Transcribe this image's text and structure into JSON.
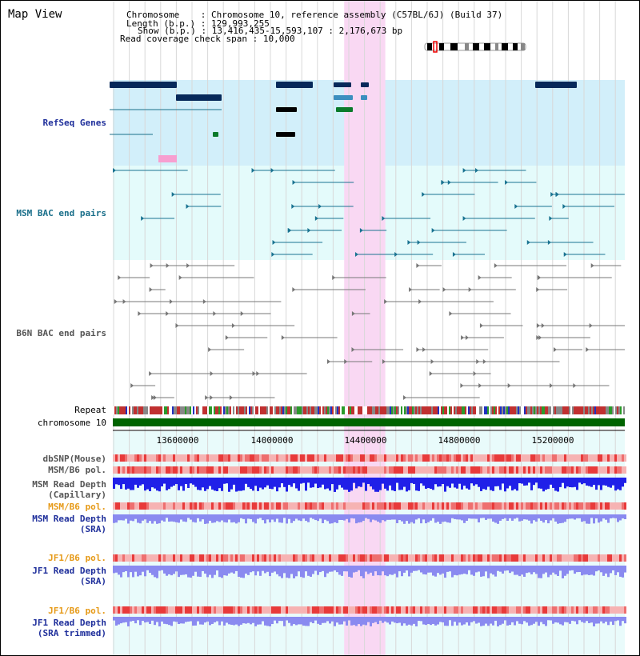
{
  "view_title": "Map View",
  "header": {
    "chromosome_label": "Chromosome",
    "chromosome_value": "Chromosome 10, reference assembly (C57BL/6J) (Build 37)",
    "length_label": "Length (b.p.)",
    "length_value": "129,993,255",
    "show_label": "Show (b.p.)",
    "show_value": "13,416,435-15,593,107 : 2,176,673 bp",
    "coverage_label": "Read coverage check span",
    "coverage_value": "10,000"
  },
  "tracks": {
    "refseq": "RefSeq Genes",
    "msm_bac": "MSM BAC end pairs",
    "b6n_bac": "B6N BAC end pairs",
    "repeat": "Repeat",
    "chromosome": "chromosome 10",
    "dbsnp": "dbSNP(Mouse)",
    "msm_b6_pol_1": "MSM/B6 pol.",
    "msm_read_depth_cap_1": "MSM Read Depth",
    "msm_read_depth_cap_2": "(Capillary)",
    "msm_b6_pol_2": "MSM/B6 pol.",
    "msm_read_depth_sra_1": "MSM Read Depth",
    "msm_read_depth_sra_2": "(SRA)",
    "jf1_b6_pol_1": "JF1/B6 pol.",
    "jf1_read_depth_sra_1": "JF1 Read Depth",
    "jf1_read_depth_sra_2": "(SRA)",
    "jf1_b6_pol_2": "JF1/B6 pol.",
    "jf1_read_depth_trim_1": "JF1 Read Depth",
    "jf1_read_depth_trim_2": "(SRA trimmed)"
  },
  "axis": {
    "ticks": [
      {
        "value": 13600000,
        "label": "13600000"
      },
      {
        "value": 14000000,
        "label": "14000000"
      },
      {
        "value": 14400000,
        "label": "14400000"
      },
      {
        "value": 14800000,
        "label": "14800000"
      },
      {
        "value": 15200000,
        "label": "15200000"
      }
    ],
    "range_start": 13416435,
    "range_end": 15593107
  },
  "highlight_region": {
    "start": 14400000,
    "end": 14575000
  },
  "colors": {
    "refseq_bg": "#d2effa",
    "msm_bg": "#e4fbfb",
    "highlight": "#f9d8f3",
    "chromosome_bar": "#006400",
    "gene_dark": "#07295a",
    "msm_pair": "#1a7391",
    "b6n_pair": "#777777",
    "read_depth_blue": "#2020e8",
    "read_depth_light": "#8a8af0",
    "pol_red": "#e83a3a",
    "pol_light": "#f6b3b3"
  }
}
